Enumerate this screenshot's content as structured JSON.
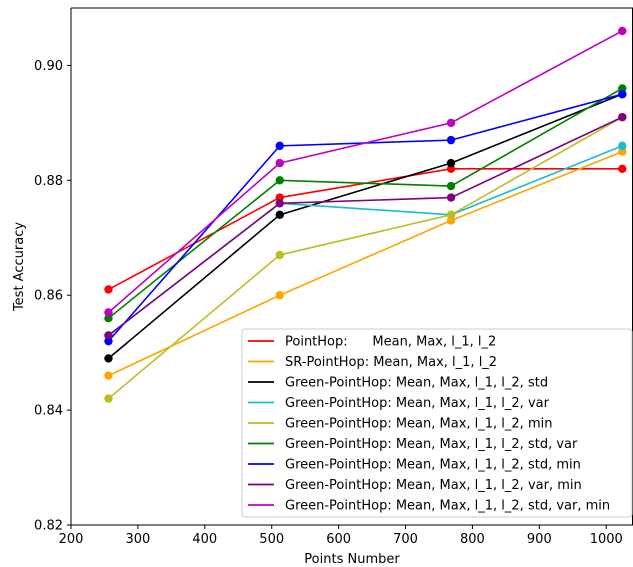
{
  "chart_data": {
    "type": "line",
    "title": "",
    "xlabel": "Points Number",
    "ylabel": "Test Accuracy",
    "xlim": [
      200,
      1040
    ],
    "ylim": [
      0.82,
      0.91
    ],
    "x": [
      256,
      512,
      768,
      1024
    ],
    "xticks": [
      "200",
      "300",
      "400",
      "500",
      "600",
      "700",
      "800",
      "900",
      "1000"
    ],
    "yticks": [
      "0.82",
      "0.84",
      "0.86",
      "0.88",
      "0.90"
    ],
    "grid": false,
    "legend_position": "lower-right",
    "series": [
      {
        "name": "PointHop:      Mean, Max, l_1, l_2",
        "color": "#ff0000",
        "values": [
          0.861,
          0.877,
          0.882,
          0.882
        ]
      },
      {
        "name": "SR-PointHop: Mean, Max, l_1, l_2",
        "color": "#ffa500",
        "values": [
          0.846,
          0.86,
          0.873,
          0.885
        ]
      },
      {
        "name": "Green-PointHop: Mean, Max, l_1, l_2, std",
        "color": "#000000",
        "values": [
          0.849,
          0.874,
          0.883,
          0.895
        ]
      },
      {
        "name": "Green-PointHop: Mean, Max, l_1, l_2, var",
        "color": "#17becf",
        "values": [
          0.853,
          0.876,
          0.874,
          0.886
        ]
      },
      {
        "name": "Green-PointHop: Mean, Max, l_1, l_2, min",
        "color": "#bcbd22",
        "values": [
          0.842,
          0.867,
          0.874,
          0.891
        ]
      },
      {
        "name": "Green-PointHop: Mean, Max, l_1, l_2, std, var",
        "color": "#008000",
        "values": [
          0.856,
          0.88,
          0.879,
          0.896
        ]
      },
      {
        "name": "Green-PointHop: Mean, Max, l_1, l_2, std, min",
        "color": "#0000ff",
        "values": [
          0.852,
          0.886,
          0.887,
          0.895
        ]
      },
      {
        "name": "Green-PointHop: Mean, Max, l_1, l_2, var, min",
        "color": "#800080",
        "values": [
          0.853,
          0.876,
          0.877,
          0.891
        ]
      },
      {
        "name": "Green-PointHop: Mean, Max, l_1, l_2, std, var, min",
        "color": "#c000c0",
        "values": [
          0.857,
          0.883,
          0.89,
          0.906
        ]
      }
    ]
  }
}
